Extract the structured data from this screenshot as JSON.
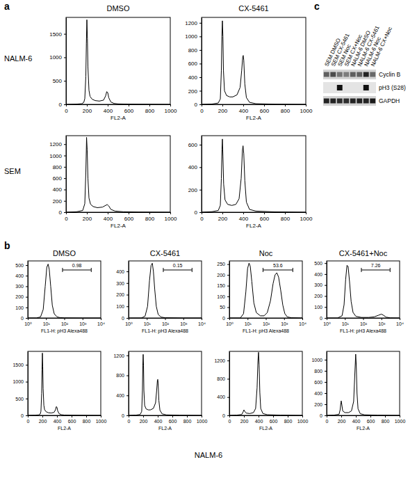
{
  "chart_data": [
    {
      "type": "line",
      "xlabel": "FL2-A",
      "color": "#000000",
      "x": [
        0,
        100,
        150,
        170,
        180,
        190,
        195,
        200,
        205,
        210,
        220,
        230,
        250,
        280,
        320,
        360,
        380,
        390,
        400,
        410,
        430,
        460,
        500,
        600,
        800,
        1000
      ],
      "values": [
        0,
        5,
        15,
        40,
        120,
        600,
        1300,
        1800,
        1400,
        800,
        300,
        170,
        110,
        80,
        70,
        90,
        180,
        270,
        250,
        140,
        50,
        20,
        10,
        5,
        2,
        0
      ],
      "xlim": [
        0,
        1000
      ],
      "ylim": [
        0,
        1850
      ],
      "xticks": [
        0,
        200,
        400,
        600,
        800,
        1000
      ],
      "yticks": [
        0,
        500,
        1000,
        1500
      ]
    },
    {
      "type": "line",
      "xlabel": "FL2-A",
      "color": "#000000",
      "x": [
        0,
        100,
        160,
        180,
        190,
        195,
        200,
        205,
        210,
        220,
        240,
        270,
        300,
        340,
        370,
        385,
        395,
        400,
        405,
        415,
        430,
        460,
        520,
        700,
        1000
      ],
      "values": [
        0,
        5,
        20,
        80,
        500,
        1000,
        1230,
        1000,
        500,
        200,
        130,
        110,
        110,
        140,
        250,
        500,
        700,
        720,
        650,
        300,
        100,
        30,
        10,
        3,
        0
      ],
      "xlim": [
        0,
        1000
      ],
      "ylim": [
        0,
        1280
      ],
      "xticks": [
        0,
        200,
        400,
        600,
        800,
        1000
      ],
      "yticks": [
        0,
        200,
        400,
        600,
        800,
        1000,
        1200
      ]
    },
    {
      "type": "line",
      "xlabel": "FL2-A",
      "color": "#000000",
      "x": [
        0,
        100,
        160,
        180,
        190,
        197,
        203,
        210,
        220,
        235,
        260,
        300,
        350,
        380,
        395,
        410,
        430,
        470,
        550,
        700,
        1000
      ],
      "values": [
        0,
        8,
        30,
        150,
        700,
        1320,
        1100,
        600,
        250,
        140,
        100,
        80,
        90,
        120,
        135,
        110,
        50,
        20,
        8,
        3,
        0
      ],
      "xlim": [
        0,
        1000
      ],
      "ylim": [
        0,
        1350
      ],
      "xticks": [
        0,
        200,
        400,
        600,
        800,
        1000
      ],
      "yticks": [
        0,
        200,
        400,
        600,
        800,
        1000,
        1200
      ]
    },
    {
      "type": "line",
      "xlabel": "FL2-A",
      "color": "#000000",
      "x": [
        0,
        100,
        160,
        180,
        190,
        196,
        200,
        205,
        212,
        225,
        250,
        290,
        330,
        360,
        380,
        392,
        398,
        405,
        415,
        430,
        460,
        520,
        700,
        1000
      ],
      "values": [
        0,
        5,
        15,
        60,
        300,
        560,
        650,
        500,
        250,
        110,
        70,
        60,
        70,
        120,
        300,
        550,
        590,
        520,
        280,
        90,
        25,
        10,
        3,
        0
      ],
      "xlim": [
        0,
        1000
      ],
      "ylim": [
        0,
        680
      ],
      "xticks": [
        0,
        200,
        400,
        600,
        800,
        1000
      ],
      "yticks": [
        0,
        200,
        400,
        600
      ]
    },
    {
      "type": "line",
      "xlabel": "FL1-H: pH3 Alexa488",
      "color": "#000000",
      "log": "x",
      "x": [
        1,
        3,
        5,
        7,
        9,
        11,
        13,
        15,
        18,
        22,
        28,
        40,
        60,
        100,
        1000,
        10000
      ],
      "values": [
        0,
        0,
        10,
        80,
        300,
        480,
        510,
        460,
        300,
        120,
        40,
        10,
        3,
        1,
        0,
        0
      ],
      "xlim": [
        1,
        10000
      ],
      "ylim": [
        0,
        540
      ],
      "xticks": [
        {
          "value": 1,
          "label": "10⁰"
        },
        {
          "value": 10,
          "label": "10¹"
        },
        {
          "value": 100,
          "label": "10²"
        },
        {
          "value": 1000,
          "label": "10³"
        },
        {
          "value": 10000,
          "label": "10⁴"
        }
      ],
      "yticks": [
        0,
        100,
        200,
        300,
        400,
        500
      ],
      "gate": {
        "x": [
          80,
          3000
        ],
        "value": 0.98
      }
    },
    {
      "type": "line",
      "xlabel": "FL1-H: pH3 Alexa488",
      "color": "#000000",
      "log": "x",
      "x": [
        1,
        5,
        8,
        11,
        14,
        17,
        20,
        23,
        27,
        33,
        42,
        60,
        100,
        1000,
        10000
      ],
      "values": [
        0,
        0,
        15,
        100,
        320,
        450,
        470,
        400,
        250,
        100,
        30,
        8,
        2,
        0,
        0
      ],
      "xlim": [
        1,
        10000
      ],
      "ylim": [
        0,
        490
      ],
      "xticks": [
        {
          "value": 1,
          "label": "10⁰"
        },
        {
          "value": 10,
          "label": "10¹"
        },
        {
          "value": 100,
          "label": "10²"
        },
        {
          "value": 1000,
          "label": "10³"
        },
        {
          "value": 10000,
          "label": "10⁴"
        }
      ],
      "yticks": [
        0,
        100,
        200,
        300,
        400
      ],
      "gate": {
        "x": [
          80,
          3000
        ],
        "value": 0.15
      }
    },
    {
      "type": "line",
      "xlabel": "FL1-H: pH3 Alexa488",
      "color": "#000000",
      "log": "x",
      "x": [
        1,
        4,
        6,
        8,
        10,
        12,
        14,
        17,
        22,
        30,
        50,
        80,
        120,
        180,
        250,
        320,
        400,
        500,
        650,
        850,
        1100,
        1500,
        2500,
        10000
      ],
      "values": [
        0,
        0,
        20,
        120,
        230,
        255,
        240,
        170,
        70,
        25,
        10,
        10,
        25,
        80,
        160,
        200,
        210,
        190,
        130,
        60,
        20,
        5,
        1,
        0
      ],
      "xlim": [
        1,
        10000
      ],
      "ylim": [
        0,
        265
      ],
      "xticks": [
        {
          "value": 1,
          "label": "10⁰"
        },
        {
          "value": 10,
          "label": "10¹"
        },
        {
          "value": 100,
          "label": "10²"
        },
        {
          "value": 1000,
          "label": "10³"
        },
        {
          "value": 10000,
          "label": "10⁴"
        }
      ],
      "yticks": [
        0,
        50,
        100,
        150,
        200,
        250
      ],
      "gate": {
        "x": [
          70,
          3000
        ],
        "value": 53.6
      }
    },
    {
      "type": "line",
      "xlabel": "FL1-H: pH3 Alexa488",
      "color": "#000000",
      "log": "x",
      "x": [
        1,
        4,
        7,
        9,
        11,
        13,
        15,
        18,
        22,
        28,
        40,
        80,
        200,
        400,
        700,
        1000,
        1300,
        1800,
        3000,
        10000
      ],
      "values": [
        0,
        0,
        20,
        120,
        350,
        480,
        470,
        330,
        150,
        50,
        15,
        5,
        5,
        10,
        25,
        35,
        25,
        8,
        1,
        0
      ],
      "xlim": [
        1,
        10000
      ],
      "ylim": [
        0,
        520
      ],
      "xticks": [
        {
          "value": 1,
          "label": "10⁰"
        },
        {
          "value": 10,
          "label": "10¹"
        },
        {
          "value": 100,
          "label": "10²"
        },
        {
          "value": 1000,
          "label": "10³"
        },
        {
          "value": 10000,
          "label": "10⁴"
        }
      ],
      "yticks": [
        0,
        100,
        200,
        300,
        400,
        500
      ],
      "gate": {
        "x": [
          80,
          3000
        ],
        "value": 7.26
      }
    },
    {
      "type": "line",
      "xlabel": "FL2-A",
      "color": "#000000",
      "x": [
        0,
        100,
        150,
        170,
        180,
        190,
        195,
        200,
        205,
        210,
        220,
        230,
        250,
        280,
        320,
        360,
        380,
        390,
        400,
        410,
        430,
        460,
        500,
        600,
        800,
        1000
      ],
      "values": [
        0,
        5,
        15,
        40,
        120,
        650,
        1350,
        1850,
        1450,
        800,
        300,
        170,
        110,
        80,
        70,
        90,
        170,
        260,
        240,
        130,
        50,
        20,
        10,
        5,
        2,
        0
      ],
      "xlim": [
        0,
        1000
      ],
      "ylim": [
        0,
        1900
      ],
      "xticks": [
        0,
        200,
        400,
        600,
        800,
        1000
      ],
      "yticks": [
        0,
        500,
        1000,
        1500
      ]
    },
    {
      "type": "line",
      "xlabel": "FL2-A",
      "color": "#000000",
      "x": [
        0,
        100,
        160,
        180,
        190,
        195,
        200,
        205,
        210,
        220,
        240,
        270,
        300,
        340,
        370,
        385,
        395,
        400,
        405,
        415,
        430,
        460,
        520,
        700,
        1000
      ],
      "values": [
        0,
        5,
        20,
        80,
        500,
        1000,
        1220,
        1000,
        500,
        200,
        130,
        110,
        110,
        140,
        250,
        500,
        700,
        720,
        650,
        300,
        100,
        30,
        10,
        3,
        0
      ],
      "xlim": [
        0,
        1000
      ],
      "ylim": [
        0,
        1280
      ],
      "xticks": [
        0,
        200,
        400,
        600,
        800,
        1000
      ],
      "yticks": [
        0,
        400,
        800,
        1200
      ]
    },
    {
      "type": "line",
      "xlabel": "FL2-A",
      "color": "#000000",
      "x": [
        0,
        100,
        170,
        190,
        200,
        210,
        230,
        280,
        330,
        360,
        380,
        392,
        400,
        408,
        418,
        430,
        460,
        520,
        700,
        1000
      ],
      "values": [
        0,
        5,
        20,
        80,
        120,
        90,
        50,
        40,
        60,
        150,
        600,
        1200,
        1380,
        1100,
        500,
        150,
        40,
        15,
        5,
        0
      ],
      "xlim": [
        0,
        1000
      ],
      "ylim": [
        0,
        1400
      ],
      "xticks": [
        0,
        200,
        400,
        600,
        800,
        1000
      ],
      "yticks": [
        0,
        400,
        800,
        1200
      ]
    },
    {
      "type": "line",
      "xlabel": "FL2-A",
      "color": "#000000",
      "x": [
        0,
        100,
        170,
        185,
        195,
        200,
        207,
        220,
        250,
        300,
        340,
        370,
        388,
        398,
        406,
        416,
        430,
        460,
        520,
        700,
        1000
      ],
      "values": [
        0,
        5,
        20,
        100,
        230,
        260,
        200,
        80,
        50,
        50,
        80,
        250,
        800,
        1100,
        900,
        400,
        120,
        30,
        10,
        3,
        0
      ],
      "xlim": [
        0,
        1000
      ],
      "ylim": [
        0,
        1150
      ],
      "xticks": [
        0,
        200,
        400,
        600,
        800,
        1000
      ],
      "yticks": [
        0,
        200,
        400,
        600,
        800,
        1000
      ]
    }
  ],
  "figure": {
    "a": {
      "label": "a",
      "columns": [
        "DMSO",
        "CX-5461"
      ],
      "rows": [
        "NALM-6",
        "SEM"
      ]
    },
    "b": {
      "label": "b",
      "columns": [
        "DMSO",
        "CX-5461",
        "Noc",
        "CX-5461+Noc"
      ],
      "caption": "NALM-6"
    },
    "c": {
      "label": "c",
      "lanes": [
        "SEM DMSO",
        "SEM CX-5461",
        "SEM Noc",
        "SEM CX+Noc",
        "NALM-6 DMSO",
        "NALM-6 CX-5461",
        "NALM-6 Noc",
        "NALM-6 CX+Noc"
      ],
      "rows": [
        {
          "name": "Cyclin B",
          "intensity": [
            0.6,
            0.7,
            0.5,
            0.45,
            0.6,
            0.6,
            0.9,
            0.55
          ]
        },
        {
          "name": "pH3 (S28)",
          "intensity": [
            0,
            0,
            1,
            0,
            0,
            0,
            1,
            0
          ]
        },
        {
          "name": "GAPDH",
          "intensity": [
            0.9,
            0.9,
            0.85,
            0.85,
            0.9,
            0.9,
            0.9,
            0.95
          ]
        }
      ]
    }
  }
}
